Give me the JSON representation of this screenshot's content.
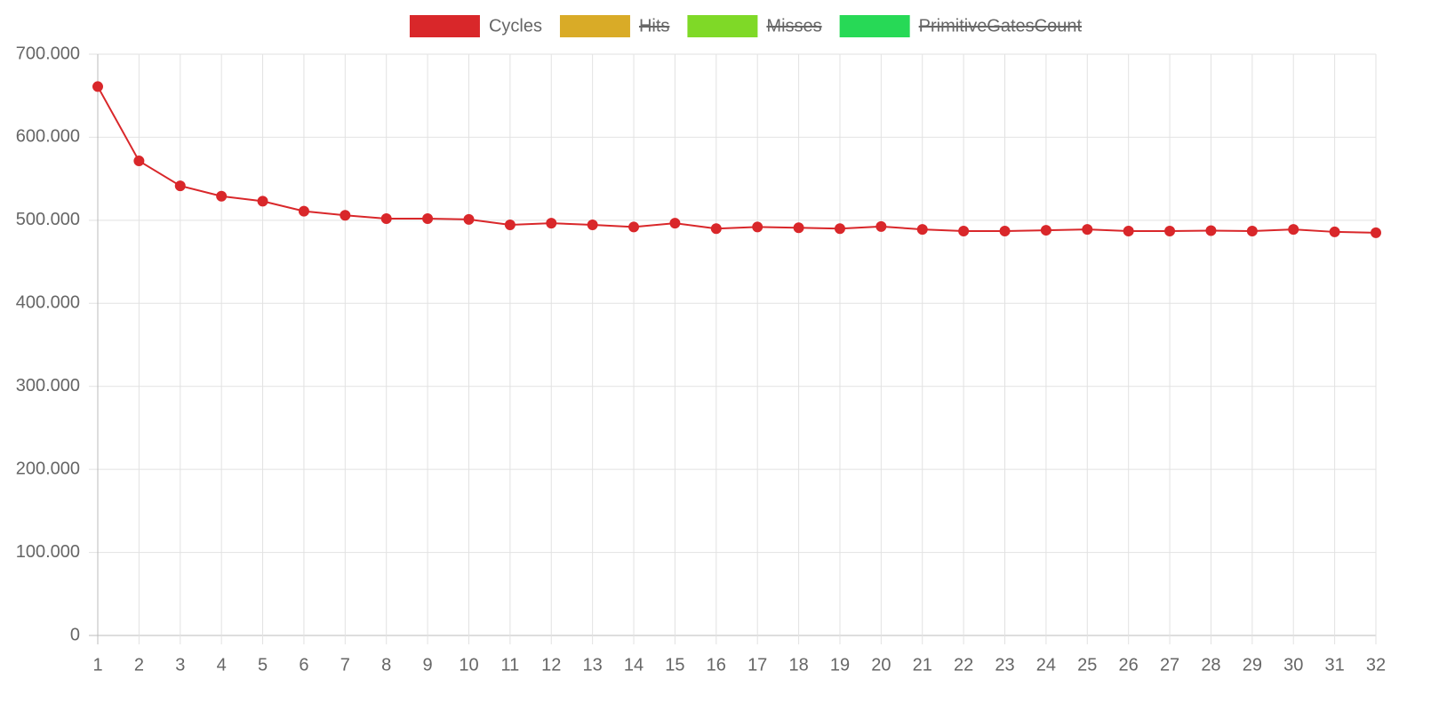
{
  "chart_data": {
    "type": "line",
    "categories": [
      "1",
      "2",
      "3",
      "4",
      "5",
      "6",
      "7",
      "8",
      "9",
      "10",
      "11",
      "12",
      "13",
      "14",
      "15",
      "16",
      "17",
      "18",
      "19",
      "20",
      "21",
      "22",
      "23",
      "24",
      "25",
      "26",
      "27",
      "28",
      "29",
      "30",
      "31",
      "32"
    ],
    "series": [
      {
        "name": "Cycles",
        "color": "#d9272a",
        "values": [
          661000,
          571500,
          541500,
          529000,
          523000,
          511000,
          506000,
          502000,
          502000,
          501000,
          494500,
          496500,
          494500,
          492000,
          496500,
          490000,
          492000,
          491000,
          490000,
          492500,
          489000,
          487000,
          487000,
          488000,
          489000,
          487000,
          487000,
          487500,
          487000,
          489000,
          486000,
          485000
        ]
      },
      {
        "name": "Hits",
        "color": "#d9ab27",
        "hidden": true
      },
      {
        "name": "Misses",
        "color": "#7fd927",
        "hidden": true
      },
      {
        "name": "PrimitiveGatesCount",
        "color": "#27d956",
        "hidden": true
      }
    ],
    "ylim": [
      0,
      700000
    ],
    "yticks": [
      0,
      {
        "value": 100000,
        "label": "100.000"
      },
      {
        "value": 200000,
        "label": "200.000"
      },
      {
        "value": 300000,
        "label": "300.000"
      },
      {
        "value": 400000,
        "label": "400.000"
      },
      {
        "value": 500000,
        "label": "500.000"
      },
      {
        "value": 600000,
        "label": "600.000"
      },
      {
        "value": 700000,
        "label": "700.000"
      }
    ],
    "grid": true,
    "legend": "top"
  }
}
